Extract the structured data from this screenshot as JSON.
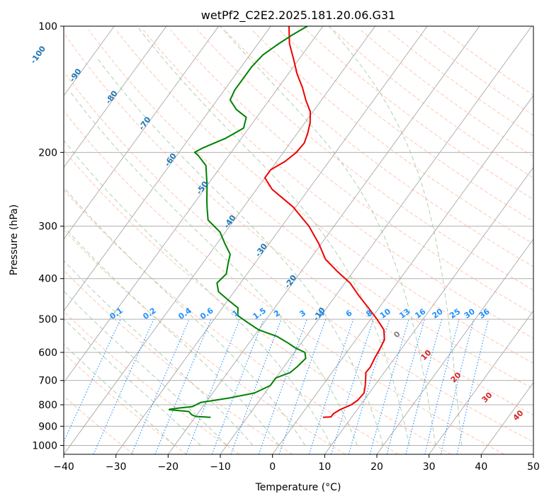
{
  "chart_data": {
    "type": "line",
    "subtype": "skew-T log-P diagram",
    "title": "wetPf2_C2E2.2025.181.20.06.G31",
    "xlabel": "Temperature (°C)",
    "ylabel": "Pressure (hPa)",
    "xlim": [
      -40,
      50
    ],
    "ylim": [
      1050,
      100
    ],
    "y_scale": "log",
    "x_ticks": [
      "-40",
      "-30",
      "-20",
      "-10",
      "0",
      "10",
      "20",
      "30",
      "40",
      "50"
    ],
    "y_ticks": [
      {
        "p": 100,
        "label": "100"
      },
      {
        "p": 200,
        "label": "200"
      },
      {
        "p": 300,
        "label": "300"
      },
      {
        "p": 400,
        "label": "400"
      },
      {
        "p": 500,
        "label": "500"
      },
      {
        "p": 600,
        "label": "600"
      },
      {
        "p": 700,
        "label": "700"
      },
      {
        "p": 800,
        "label": "800"
      },
      {
        "p": 900,
        "label": "900"
      },
      {
        "p": 1000,
        "label": "1000"
      }
    ],
    "grid": true,
    "series": [
      {
        "color": "#ee0000",
        "points": [
          [
            857,
            4.5
          ],
          [
            855,
            6
          ],
          [
            840,
            6
          ],
          [
            820,
            6.8
          ],
          [
            800,
            8.2
          ],
          [
            780,
            8.8
          ],
          [
            750,
            9
          ],
          [
            720,
            8.2
          ],
          [
            690,
            7.2
          ],
          [
            670,
            6.5
          ],
          [
            650,
            6.6
          ],
          [
            620,
            6.2
          ],
          [
            590,
            5.9
          ],
          [
            560,
            5.5
          ],
          [
            530,
            4
          ],
          [
            500,
            1.2
          ],
          [
            470,
            -2
          ],
          [
            440,
            -5.5
          ],
          [
            410,
            -9
          ],
          [
            385,
            -13
          ],
          [
            360,
            -17
          ],
          [
            330,
            -20.5
          ],
          [
            300,
            -24.8
          ],
          [
            270,
            -30.5
          ],
          [
            245,
            -37
          ],
          [
            230,
            -40
          ],
          [
            220,
            -40
          ],
          [
            210,
            -38.4
          ],
          [
            200,
            -37.5
          ],
          [
            190,
            -37.3
          ],
          [
            180,
            -38
          ],
          [
            170,
            -39
          ],
          [
            160,
            -40.5
          ],
          [
            150,
            -43
          ],
          [
            140,
            -45.4
          ],
          [
            130,
            -48.3
          ],
          [
            120,
            -51
          ],
          [
            110,
            -54
          ],
          [
            100,
            -56.5
          ]
        ]
      },
      {
        "color": "#008000",
        "points": [
          [
            857,
            -17
          ],
          [
            853,
            -20
          ],
          [
            845,
            -21
          ],
          [
            830,
            -22
          ],
          [
            822,
            -26
          ],
          [
            820,
            -26
          ],
          [
            815,
            -24.5
          ],
          [
            808,
            -22
          ],
          [
            790,
            -21
          ],
          [
            770,
            -16
          ],
          [
            750,
            -12
          ],
          [
            720,
            -10
          ],
          [
            690,
            -10
          ],
          [
            670,
            -8
          ],
          [
            650,
            -7.5
          ],
          [
            620,
            -7
          ],
          [
            600,
            -8
          ],
          [
            585,
            -10.5
          ],
          [
            570,
            -12.5
          ],
          [
            550,
            -15.5
          ],
          [
            530,
            -20
          ],
          [
            510,
            -23
          ],
          [
            490,
            -26
          ],
          [
            470,
            -27
          ],
          [
            450,
            -30
          ],
          [
            430,
            -33
          ],
          [
            410,
            -34.5
          ],
          [
            390,
            -34
          ],
          [
            370,
            -35
          ],
          [
            350,
            -36
          ],
          [
            330,
            -38.5
          ],
          [
            310,
            -41
          ],
          [
            290,
            -45
          ],
          [
            270,
            -47
          ],
          [
            260,
            -48
          ],
          [
            240,
            -50
          ],
          [
            215,
            -53
          ],
          [
            203,
            -56
          ],
          [
            200,
            -57
          ],
          [
            195,
            -56
          ],
          [
            185,
            -53
          ],
          [
            175,
            -51
          ],
          [
            165,
            -52
          ],
          [
            158,
            -55
          ],
          [
            150,
            -57.5
          ],
          [
            142,
            -58
          ],
          [
            135,
            -58
          ],
          [
            125,
            -58
          ],
          [
            117,
            -57.5
          ],
          [
            110,
            -56
          ],
          [
            105,
            -54.7
          ],
          [
            100,
            -53
          ]
        ]
      }
    ],
    "isotherm_labels": [
      "-100",
      "-90",
      "-80",
      "-70",
      "-60",
      "-50",
      "-40",
      "-30",
      "-20",
      "-10"
    ],
    "isotherm_label_values": [
      -100,
      -90,
      -80,
      -70,
      -60,
      -50,
      -40,
      -30,
      -20,
      -10
    ],
    "mixing_ratio_labels": [
      "0.1",
      "0.2",
      "0.4",
      "0.6",
      "1",
      "1.5",
      "2",
      "3",
      "4",
      "6",
      "8",
      "10",
      "13",
      "16",
      "20",
      "25",
      "30",
      "36"
    ],
    "mixing_ratio_values": [
      0.1,
      0.2,
      0.4,
      0.6,
      1,
      1.5,
      2,
      3,
      4,
      6,
      8,
      10,
      13,
      16,
      20,
      25,
      30,
      36
    ],
    "temperature_labels": [
      {
        "text": "0",
        "color": "#808080"
      },
      {
        "text": "10",
        "color": "#d62728"
      },
      {
        "text": "20",
        "color": "#d62728"
      },
      {
        "text": "30",
        "color": "#d62728"
      },
      {
        "text": "40",
        "color": "#d62728"
      }
    ],
    "temperature_label_values": [
      0,
      10,
      20,
      30,
      40
    ],
    "colors": {
      "isotherm_label": "#1f77b4",
      "mixing_ratio": "#1e90ff",
      "dry_adiabat": "#ffa07a",
      "moist_adiabat": "#8fbc8f",
      "isotherm_line": "#808080"
    }
  }
}
